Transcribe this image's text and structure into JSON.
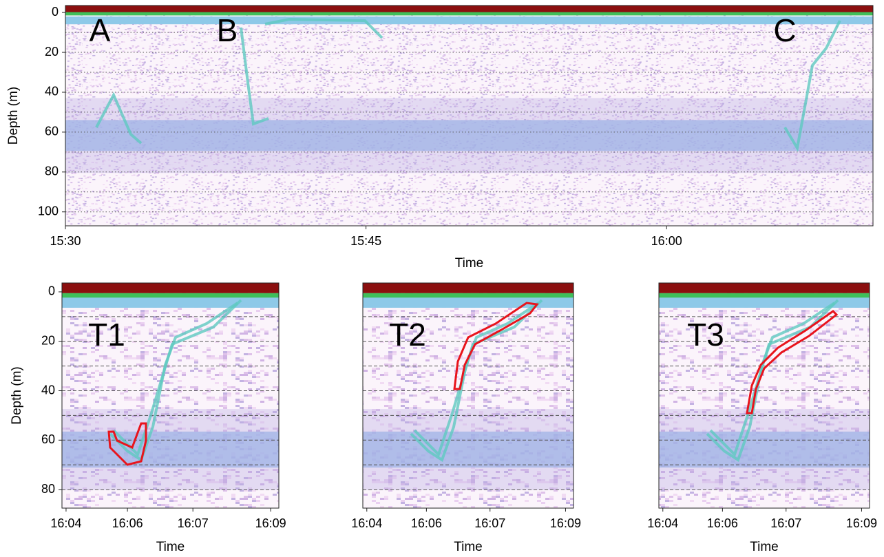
{
  "chart_data": [
    {
      "type": "echogram",
      "ylabel": "Depth (m)",
      "xlabel": "Time",
      "xlim": [
        930,
        970.3
      ],
      "xticks": [
        {
          "value": 930,
          "label": "15:30"
        },
        {
          "value": 945,
          "label": "15:45"
        },
        {
          "value": 960,
          "label": "16:00"
        }
      ],
      "ylim": [
        -3.5,
        107
      ],
      "invert_y": true,
      "yticks": [
        0,
        20,
        40,
        60,
        80,
        100
      ],
      "grid_yticks": [
        10,
        20,
        30,
        40,
        50,
        60,
        70,
        80,
        90,
        100
      ],
      "annotations": [
        "A",
        "B",
        "C"
      ]
    },
    {
      "type": "echogram",
      "ylabel": "Depth (m)",
      "xlabel": "Time",
      "xlim": [
        963.9,
        969.2
      ],
      "xticks": [
        {
          "value": 964,
          "label": "16:04"
        },
        {
          "value": 965.5,
          "label": "16:06"
        },
        {
          "value": 967.1,
          "label": "16:07"
        },
        {
          "value": 969,
          "label": "16:09"
        }
      ],
      "ylim": [
        -3.6,
        87.5
      ],
      "invert_y": true,
      "yticks": [
        0,
        20,
        40,
        60,
        80
      ],
      "grid_yticks": [
        10,
        20,
        30,
        40,
        50,
        60,
        70,
        80
      ],
      "annotations": [
        "T1"
      ]
    },
    {
      "type": "echogram",
      "xlabel": "Time",
      "xlim": [
        963.9,
        969.2
      ],
      "xticks": [
        {
          "value": 964,
          "label": "16:04"
        },
        {
          "value": 965.5,
          "label": "16:06"
        },
        {
          "value": 967.1,
          "label": "16:07"
        },
        {
          "value": 969,
          "label": "16:09"
        }
      ],
      "ylim": [
        -3.6,
        87.5
      ],
      "invert_y": true,
      "grid_yticks": [
        10,
        20,
        30,
        40,
        50,
        60,
        70,
        80
      ],
      "annotations": [
        "T2"
      ]
    },
    {
      "type": "echogram",
      "xlabel": "Time",
      "xlim": [
        963.9,
        969.2
      ],
      "xticks": [
        {
          "value": 964,
          "label": "16:04"
        },
        {
          "value": 965.5,
          "label": "16:06"
        },
        {
          "value": 967.1,
          "label": "16:07"
        },
        {
          "value": 969,
          "label": "16:09"
        }
      ],
      "ylim": [
        -3.6,
        87.5
      ],
      "invert_y": true,
      "grid_yticks": [
        10,
        20,
        30,
        40,
        50,
        60,
        70,
        80
      ],
      "annotations": [
        "T3"
      ]
    }
  ]
}
